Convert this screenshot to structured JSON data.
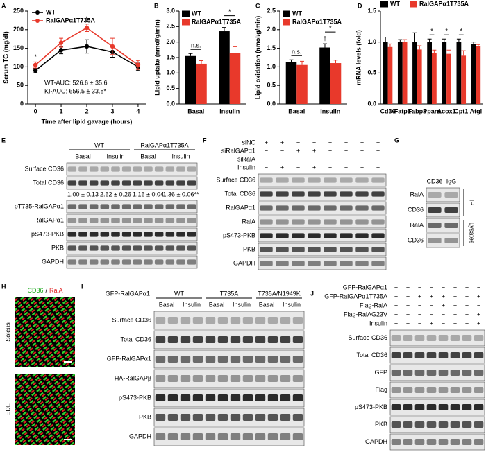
{
  "chart_data": [
    {
      "type": "line",
      "panel_label": "A",
      "y_label": "Serum TG (mg/dl)",
      "x_label": "Time after lipid gavage (hours)",
      "x": [
        0,
        1,
        2,
        3,
        4
      ],
      "xlim": [
        -0.3,
        4.3
      ],
      "xticks": [
        0,
        1,
        2,
        3,
        4
      ],
      "ylim": [
        0,
        250
      ],
      "yticks": [
        0,
        50,
        100,
        150,
        200,
        250
      ],
      "legend": "top-left",
      "series": [
        {
          "name": "WT",
          "color": "#000000",
          "values": [
            90,
            145,
            155,
            140,
            100
          ],
          "errors": [
            6,
            10,
            18,
            14,
            10
          ]
        },
        {
          "name": "RalGAPα1T735A",
          "color": "#e8392b",
          "values": [
            105,
            165,
            205,
            155,
            105
          ],
          "errors": [
            8,
            12,
            10,
            22,
            12
          ]
        }
      ],
      "annotations": [
        {
          "text": "*",
          "x": 0
        },
        {
          "text": "*",
          "x": 2
        }
      ],
      "notes": [
        "WT-AUC: 526.6 ± 35.6",
        "KI-AUC: 656.5 ± 33.8*"
      ]
    },
    {
      "type": "bar",
      "panel_label": "B",
      "y_label": "Lipid uptake (nmol/g/min)",
      "categories": [
        "Basal",
        "Insulin"
      ],
      "ylim": [
        0,
        3
      ],
      "yticks": [
        {
          "value": 0,
          "label": "0.0"
        },
        0.5,
        {
          "value": 1,
          "label": "1.0"
        },
        1.5,
        {
          "value": 2,
          "label": "2.0"
        },
        2.5,
        {
          "value": 3,
          "label": "3.0"
        }
      ],
      "legend": "top-left",
      "series": [
        {
          "name": "WT",
          "color": "#000000",
          "values": [
            1.55,
            2.35
          ],
          "errors": [
            0.08,
            0.12
          ]
        },
        {
          "name": "RalGAPα1T735A",
          "color": "#e8392b",
          "values": [
            1.3,
            1.65
          ],
          "errors": [
            0.1,
            0.2
          ]
        }
      ],
      "annotations": [
        {
          "text": "n.s.",
          "category": 0
        },
        {
          "text": "†",
          "category": 1,
          "series": 0
        },
        {
          "text": "*",
          "category": 1
        }
      ]
    },
    {
      "type": "bar",
      "panel_label": "C",
      "y_label": "Lipid oxidation (nmol/g/min)",
      "categories": [
        "Basal",
        "Insulin"
      ],
      "ylim": [
        0,
        2.5
      ],
      "yticks": [
        {
          "value": 0,
          "label": "0.0"
        },
        0.5,
        {
          "value": 1,
          "label": "1.0"
        },
        1.5,
        {
          "value": 2,
          "label": "2.0"
        },
        2.5
      ],
      "legend": "top-left",
      "series": [
        {
          "name": "WT",
          "color": "#000000",
          "values": [
            1.12,
            1.52
          ],
          "errors": [
            0.07,
            0.1
          ]
        },
        {
          "name": "RalGAPα1T735A",
          "color": "#e8392b",
          "values": [
            1.05,
            1.1
          ],
          "errors": [
            0.1,
            0.08
          ]
        }
      ],
      "annotations": [
        {
          "text": "n.s.",
          "category": 0
        },
        {
          "text": "†",
          "category": 1,
          "series": 0
        },
        {
          "text": "*",
          "category": 1
        }
      ]
    },
    {
      "type": "bar",
      "panel_label": "D",
      "y_label": "mRNA levels (fold)",
      "categories": [
        "Cd36",
        "Fatp1",
        "Fabp3",
        "Pparα",
        "Acox1",
        "Cpt1",
        "Atgl"
      ],
      "ylim": [
        0,
        1.5
      ],
      "yticks": [
        {
          "value": 0,
          "label": "0.0"
        },
        0.5,
        {
          "value": 1,
          "label": "1.0"
        },
        1.5
      ],
      "legend": "top",
      "series": [
        {
          "name": "WT",
          "color": "#000000",
          "values": [
            1.0,
            1.0,
            1.0,
            1.0,
            1.0,
            1.0,
            0.97
          ],
          "errors": [
            0.08,
            0.04,
            0.15,
            0.05,
            0.05,
            0.05,
            0.03
          ]
        },
        {
          "name": "RalGAPα1T735A",
          "color": "#e8392b",
          "values": [
            0.92,
            1.0,
            0.88,
            0.82,
            0.81,
            0.78,
            0.93
          ],
          "errors": [
            0.05,
            0.04,
            0.06,
            0.05,
            0.06,
            0.08,
            0.03
          ]
        }
      ],
      "annotations": [
        {
          "text": "*",
          "category": 3
        },
        {
          "text": "*",
          "category": 4
        },
        {
          "text": "*",
          "category": 5
        }
      ]
    }
  ],
  "blot_panels": [
    {
      "letter": "E",
      "groups": [
        "WT",
        "RalGAPα1T735A"
      ],
      "conditions": [
        "Basal",
        "Insulin",
        "Basal",
        "Insulin"
      ],
      "rows": [
        "Surface CD36",
        "Total CD36",
        "pT735-RalGAPα1",
        "RalGAPα1",
        "pS473-PKB",
        "PKB",
        "GAPDH"
      ],
      "quantification": [
        "1.00 ± 0.13",
        "2.62 ± 0.26",
        "1.16 ± 0.04",
        "1.36 ± 0.06**"
      ]
    },
    {
      "letter": "F",
      "treatments": [
        {
          "label": "siNC",
          "signs": [
            "+",
            "+",
            "−",
            "−",
            "+",
            "+",
            "−",
            "−"
          ]
        },
        {
          "label": "siRalGAPα1",
          "signs": [
            "−",
            "−",
            "+",
            "+",
            "−",
            "−",
            "+",
            "+"
          ]
        },
        {
          "label": "siRalA",
          "signs": [
            "−",
            "−",
            "−",
            "−",
            "+",
            "+",
            "+",
            "+"
          ]
        },
        {
          "label": "Insulin",
          "signs": [
            "−",
            "+",
            "−",
            "+",
            "−",
            "+",
            "−",
            "+"
          ]
        }
      ],
      "rows": [
        "Surface CD36",
        "Total CD36",
        "RalGAPα1",
        "RalA",
        "pS473-PKB",
        "PKB",
        "GAPDH"
      ]
    },
    {
      "letter": "G",
      "columns": [
        "CD36",
        "IgG"
      ],
      "rows": [
        "RalA",
        "CD36",
        "RalA",
        "CD36"
      ],
      "sections": [
        "IP",
        "Lysates"
      ]
    },
    {
      "letter": "H",
      "title": [
        "CD36",
        "/",
        "RalA"
      ],
      "images": [
        "Soleus",
        "EDL"
      ]
    },
    {
      "letter": "I",
      "row_header": "GFP-RalGAPα1",
      "groups": [
        "WT",
        "T735A",
        "T735A/N1949K"
      ],
      "conditions": [
        "Basal",
        "Insulin",
        "Basal",
        "Insulin",
        "Basal",
        "Insulin"
      ],
      "rows": [
        "Surface CD36",
        "Total CD36",
        "GFP-RalGAPα1",
        "HA-RalGAPβ",
        "pS473-PKB",
        "PKB",
        "GAPDH"
      ]
    },
    {
      "letter": "J",
      "treatments": [
        {
          "label": "GFP-RalGAPα1",
          "signs": [
            "+",
            "+",
            "−",
            "−",
            "−",
            "−",
            "−",
            "−"
          ]
        },
        {
          "label": "GFP-RalGAPα1T735A",
          "signs": [
            "−",
            "−",
            "+",
            "+",
            "+",
            "+",
            "+",
            "+"
          ]
        },
        {
          "label": "Flag-RalA",
          "signs": [
            "−",
            "−",
            "−",
            "−",
            "+",
            "+",
            "−",
            "−"
          ]
        },
        {
          "label": "Flag-RalAG23V",
          "signs": [
            "−",
            "−",
            "−",
            "−",
            "−",
            "−",
            "+",
            "+"
          ]
        },
        {
          "label": "Insulin",
          "signs": [
            "−",
            "+",
            "−",
            "+",
            "−",
            "+",
            "−",
            "+"
          ]
        }
      ],
      "rows": [
        "Surface CD36",
        "Total CD36",
        "GFP",
        "Flag",
        "pS473-PKB",
        "PKB",
        "GAPDH"
      ]
    }
  ]
}
